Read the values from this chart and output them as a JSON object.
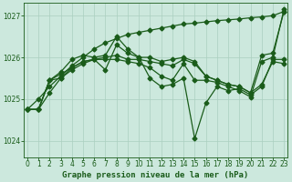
{
  "title": "Graphe pression niveau de la mer (hPa)",
  "xlabel_hours": [
    0,
    1,
    2,
    3,
    4,
    5,
    6,
    7,
    8,
    9,
    10,
    11,
    12,
    13,
    14,
    15,
    16,
    17,
    18,
    19,
    20,
    21,
    22,
    23
  ],
  "ylim": [
    1023.6,
    1027.3
  ],
  "yticks": [
    1024,
    1025,
    1026,
    1027
  ],
  "xlim": [
    -0.3,
    23.3
  ],
  "bg_color": "#cce8dd",
  "grid_color": "#aacfbf",
  "line_color": "#1a5c1a",
  "series": [
    [
      1024.75,
      1024.75,
      1025.45,
      1025.6,
      1025.75,
      1025.9,
      1025.95,
      1026.0,
      1026.05,
      1025.95,
      1025.95,
      1025.9,
      1025.85,
      1025.8,
      1025.95,
      1025.85,
      1025.55,
      1025.45,
      1025.35,
      1025.3,
      1025.15,
      1025.35,
      1025.9,
      1025.85
    ],
    [
      1024.75,
      1024.75,
      1025.15,
      1025.5,
      1025.75,
      1025.9,
      1025.95,
      1025.7,
      1026.3,
      1026.1,
      1026.0,
      1025.5,
      1025.3,
      1025.35,
      1025.5,
      1024.05,
      1024.9,
      1025.3,
      1025.2,
      1025.25,
      1025.1,
      1025.3,
      1025.95,
      1025.95
    ],
    [
      1024.75,
      1024.75,
      1025.45,
      1025.65,
      1025.95,
      1026.05,
      1026.0,
      1026.05,
      1026.5,
      1026.2,
      1026.0,
      1026.0,
      1025.9,
      1025.95,
      1026.0,
      1025.9,
      1025.55,
      1025.45,
      1025.35,
      1025.3,
      1025.15,
      1026.05,
      1026.1,
      1027.1
    ],
    [
      1024.75,
      1024.75,
      1025.45,
      1025.5,
      1025.7,
      1025.85,
      1025.95,
      1025.95,
      1025.95,
      1025.9,
      1025.85,
      1025.75,
      1025.55,
      1025.45,
      1025.85,
      1025.45,
      1025.45,
      1025.4,
      1025.3,
      1025.2,
      1025.05,
      1025.9,
      1026.0,
      1027.15
    ]
  ],
  "series_diagonal": [
    1024.75,
    1025.0,
    1025.3,
    1025.55,
    1025.8,
    1026.0,
    1026.2,
    1026.35,
    1026.45,
    1026.55,
    1026.6,
    1026.65,
    1026.7,
    1026.75,
    1026.8,
    1026.82,
    1026.85,
    1026.88,
    1026.9,
    1026.92,
    1026.95,
    1026.97,
    1027.0,
    1027.1
  ],
  "marker": "D",
  "marker_size": 2.5,
  "line_width": 0.9,
  "font_color": "#1a5c1a",
  "label_fontsize": 6.5,
  "tick_fontsize": 5.5
}
